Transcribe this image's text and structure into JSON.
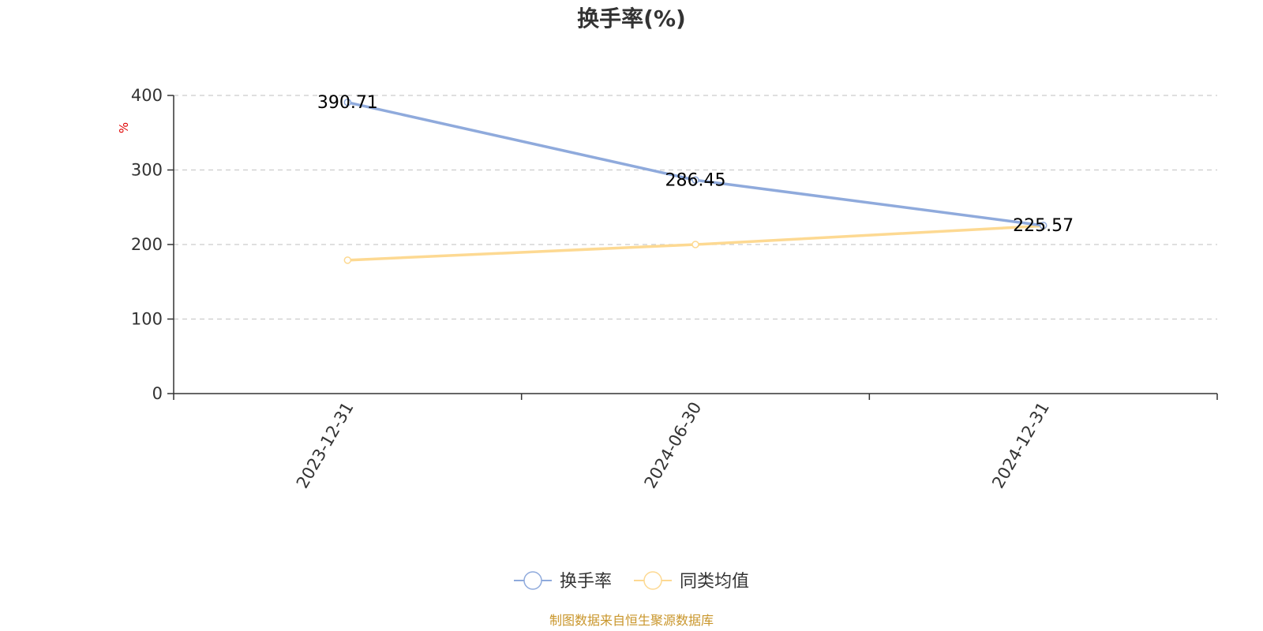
{
  "chart_data": {
    "type": "line",
    "title": "换手率(%)",
    "ylabel": "%",
    "xlabel": "",
    "categories": [
      "2023-12-31",
      "2024-06-30",
      "2024-12-31"
    ],
    "ylim": [
      0,
      400
    ],
    "yticks": [
      0,
      100,
      200,
      300,
      400
    ],
    "grid": true,
    "legend_position": "bottom-center",
    "series": [
      {
        "name": "换手率",
        "values": [
          390.71,
          286.45,
          225.57
        ],
        "labels": [
          "390.71",
          "286.45",
          "225.57"
        ],
        "color": "#8faadc",
        "show_labels": true
      },
      {
        "name": "同类均值",
        "values": [
          179,
          200,
          225
        ],
        "color": "#fdd992",
        "show_labels": false
      }
    ]
  },
  "footer": {
    "source": "制图数据来自恒生聚源数据库",
    "source_color": "#c9962b"
  },
  "colors": {
    "axis": "#333333",
    "grid": "#cccccc",
    "unit": "#e00000"
  }
}
